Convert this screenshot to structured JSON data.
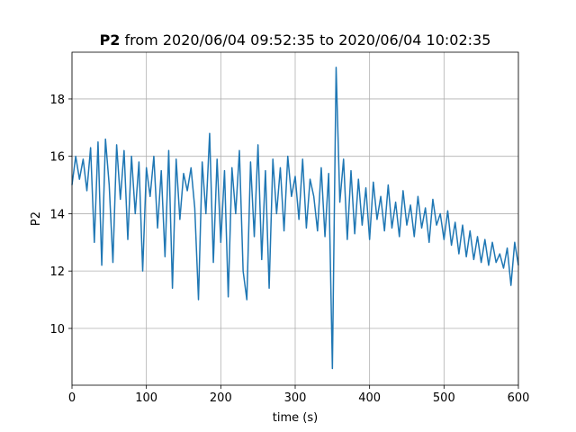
{
  "chart_data": {
    "type": "line",
    "title": [
      "P2",
      "from 2020/06/04 09:52:35 to 2020/06/04 10:02:35"
    ],
    "x_label": "time (s)",
    "y_label": "P2",
    "x": [
      0,
      5,
      10,
      15,
      20,
      25,
      30,
      35,
      40,
      45,
      50,
      55,
      60,
      65,
      70,
      75,
      80,
      85,
      90,
      95,
      100,
      105,
      110,
      115,
      120,
      125,
      130,
      135,
      140,
      145,
      150,
      155,
      160,
      165,
      170,
      175,
      180,
      185,
      190,
      195,
      200,
      205,
      210,
      215,
      220,
      225,
      230,
      235,
      240,
      245,
      250,
      255,
      260,
      265,
      270,
      275,
      280,
      285,
      290,
      295,
      300,
      305,
      310,
      315,
      320,
      325,
      330,
      335,
      340,
      345,
      350,
      355,
      360,
      365,
      370,
      375,
      380,
      385,
      390,
      395,
      400,
      405,
      410,
      415,
      420,
      425,
      430,
      435,
      440,
      445,
      450,
      455,
      460,
      465,
      470,
      475,
      480,
      485,
      490,
      495,
      500,
      505,
      510,
      515,
      520,
      525,
      530,
      535,
      540,
      545,
      550,
      555,
      560,
      565,
      570,
      575,
      580,
      585,
      590,
      595,
      600
    ],
    "series": [
      {
        "name": "P2",
        "color": "#1f77b4",
        "values": [
          15.0,
          16.0,
          15.2,
          15.9,
          14.8,
          16.3,
          13.0,
          16.5,
          12.2,
          16.6,
          15.0,
          12.3,
          16.4,
          14.5,
          16.2,
          13.1,
          16.0,
          14.0,
          15.8,
          12.0,
          15.6,
          14.6,
          16.0,
          13.5,
          15.5,
          12.5,
          16.2,
          11.4,
          15.9,
          13.8,
          15.4,
          14.8,
          15.6,
          14.2,
          11.0,
          15.8,
          14.0,
          16.8,
          12.3,
          15.9,
          13.0,
          15.5,
          11.1,
          15.6,
          14.0,
          16.2,
          12.0,
          11.0,
          15.8,
          13.2,
          16.4,
          12.4,
          15.5,
          11.4,
          15.9,
          14.0,
          15.6,
          13.4,
          16.0,
          14.6,
          15.3,
          13.8,
          15.9,
          13.5,
          15.2,
          14.6,
          13.4,
          15.6,
          13.2,
          15.4,
          8.6,
          19.1,
          14.4,
          15.9,
          13.1,
          15.5,
          13.3,
          15.2,
          13.6,
          14.9,
          13.1,
          15.1,
          13.8,
          14.6,
          13.4,
          15.0,
          13.5,
          14.4,
          13.2,
          14.8,
          13.6,
          14.3,
          13.2,
          14.6,
          13.5,
          14.2,
          13.0,
          14.5,
          13.6,
          14.0,
          13.1,
          14.1,
          12.9,
          13.7,
          12.6,
          13.6,
          12.5,
          13.4,
          12.4,
          13.2,
          12.3,
          13.1,
          12.2,
          13.0,
          12.3,
          12.6,
          12.1,
          12.8,
          11.5,
          13.0,
          12.2
        ]
      }
    ],
    "xlim": [
      0,
      600
    ],
    "xticks": [
      0,
      100,
      200,
      300,
      400,
      500,
      600
    ],
    "ylim": [
      8.02,
      19.63
    ],
    "yticks": [
      10,
      12,
      14,
      16,
      18
    ],
    "grid": true
  }
}
